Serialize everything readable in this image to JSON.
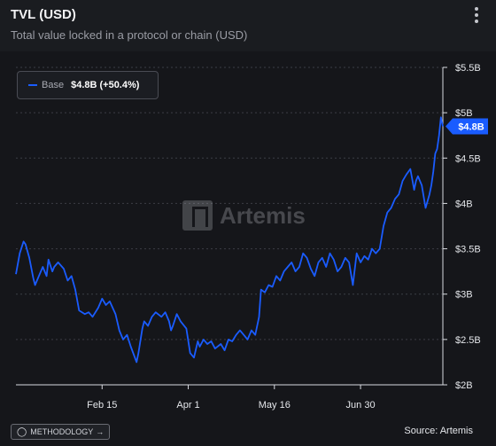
{
  "header": {
    "title": "TVL (USD)",
    "subtitle": "Total value locked in a protocol or chain (USD)"
  },
  "legend": {
    "series_name": "Base",
    "value_text": "$4.8B (+50.4%)"
  },
  "current_badge": "$4.8B",
  "watermark": "Artemis",
  "footer": {
    "methodology_label": "METHODOLOGY",
    "methodology_arrow": "→",
    "source": "Source: Artemis"
  },
  "colors": {
    "line": "#1a5cff",
    "grid": "#3c3e46",
    "axis_text": "#e4e6ea"
  },
  "icons": [
    "kebab-menu-icon",
    "lightbulb-icon",
    "arrow-right-icon"
  ],
  "chart_data": {
    "type": "line",
    "title": "TVL (USD)",
    "ylim": [
      2,
      5.5
    ],
    "y_ticks": [
      2,
      2.5,
      3,
      3.5,
      4,
      4.5,
      5,
      5.5
    ],
    "y_tick_labels": [
      "$2B",
      "$2.5B",
      "$3B",
      "$3.5B",
      "$4B",
      "$4.5B",
      "$5B",
      "$5.5B"
    ],
    "x_tick_labels": [
      "Feb 15",
      "Apr 1",
      "May 16",
      "Jun 30"
    ],
    "x_tick_days": [
      46,
      91,
      136,
      181
    ],
    "xlim": [
      1,
      224
    ],
    "grid": "horizontal dashed",
    "legend_position": "top-left",
    "series": [
      {
        "name": "Base",
        "x": [
          1,
          3,
          5,
          6,
          8,
          10,
          11,
          13,
          15,
          17,
          18,
          20,
          21,
          23,
          26,
          28,
          30,
          32,
          34,
          37,
          39,
          41,
          44,
          46,
          48,
          50,
          53,
          55,
          57,
          59,
          61,
          64,
          65,
          67,
          68,
          70,
          72,
          74,
          77,
          79,
          81,
          82,
          83,
          85,
          87,
          90,
          92,
          94,
          96,
          97,
          99,
          101,
          103,
          105,
          108,
          110,
          112,
          114,
          116,
          118,
          120,
          122,
          124,
          126,
          128,
          129,
          131,
          133,
          135,
          137,
          139,
          141,
          143,
          145,
          147,
          149,
          151,
          153,
          155,
          157,
          159,
          161,
          163,
          165,
          167,
          169,
          171,
          173,
          175,
          177,
          179,
          181,
          183,
          185,
          187,
          189,
          191,
          193,
          195,
          197,
          199,
          201,
          203,
          205,
          207,
          209,
          210,
          211,
          213,
          215,
          217,
          218,
          219,
          220,
          221,
          222,
          223,
          224
        ],
        "values": [
          3.22,
          3.45,
          3.58,
          3.55,
          3.4,
          3.18,
          3.1,
          3.2,
          3.3,
          3.2,
          3.38,
          3.25,
          3.3,
          3.35,
          3.28,
          3.15,
          3.2,
          3.05,
          2.82,
          2.78,
          2.8,
          2.75,
          2.85,
          2.95,
          2.88,
          2.92,
          2.78,
          2.6,
          2.5,
          2.55,
          2.42,
          2.25,
          2.35,
          2.62,
          2.7,
          2.65,
          2.75,
          2.8,
          2.75,
          2.8,
          2.7,
          2.6,
          2.65,
          2.78,
          2.7,
          2.62,
          2.35,
          2.3,
          2.48,
          2.42,
          2.5,
          2.45,
          2.48,
          2.4,
          2.45,
          2.38,
          2.5,
          2.48,
          2.55,
          2.6,
          2.55,
          2.5,
          2.6,
          2.55,
          2.75,
          3.05,
          3.02,
          3.1,
          3.08,
          3.2,
          3.15,
          3.25,
          3.3,
          3.35,
          3.25,
          3.3,
          3.45,
          3.4,
          3.28,
          3.2,
          3.35,
          3.4,
          3.3,
          3.45,
          3.38,
          3.25,
          3.3,
          3.4,
          3.35,
          3.1,
          3.45,
          3.35,
          3.42,
          3.38,
          3.5,
          3.45,
          3.5,
          3.75,
          3.9,
          3.95,
          4.05,
          4.1,
          4.25,
          4.32,
          4.38,
          4.15,
          4.25,
          4.3,
          4.2,
          3.95,
          4.1,
          4.2,
          4.35,
          4.55,
          4.6,
          4.75,
          4.95,
          4.85
        ]
      }
    ]
  }
}
